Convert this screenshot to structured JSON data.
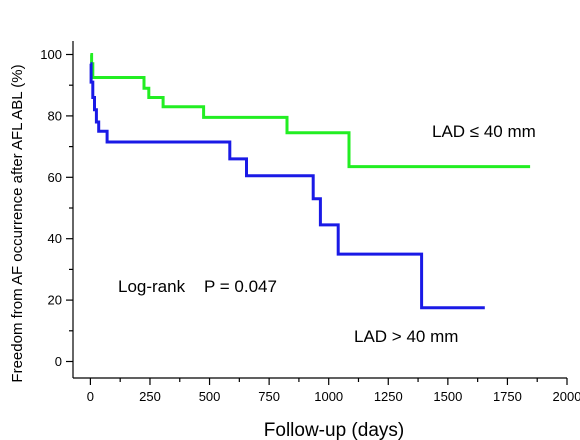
{
  "chart_data": {
    "type": "line",
    "subtype": "kaplan-meier-step",
    "xlabel": "Follow-up (days)",
    "ylabel": "Freedom from AF occurrence after AFL ABL (%)",
    "xlim": [
      -50,
      2000
    ],
    "ylim": [
      -5,
      105
    ],
    "xticks": [
      0,
      250,
      500,
      750,
      1000,
      1250,
      1500,
      1750,
      2000
    ],
    "yticks": [
      0,
      20,
      40,
      60,
      80,
      100
    ],
    "grid": false,
    "legend": "none",
    "series": [
      {
        "label": "LAD ≤ 40 mm",
        "color": "#22ee22",
        "points": [
          [
            0,
            100
          ],
          [
            5,
            100
          ],
          [
            5,
            97
          ],
          [
            10,
            97
          ],
          [
            10,
            92.5
          ],
          [
            225,
            92.5
          ],
          [
            225,
            89
          ],
          [
            245,
            89
          ],
          [
            245,
            86
          ],
          [
            305,
            86
          ],
          [
            305,
            83
          ],
          [
            475,
            83
          ],
          [
            475,
            79.5
          ],
          [
            825,
            79.5
          ],
          [
            825,
            74.5
          ],
          [
            1085,
            74.5
          ],
          [
            1085,
            63.5
          ],
          [
            1845,
            63.5
          ]
        ]
      },
      {
        "label": "LAD > 40 mm",
        "color": "#1a1ae6",
        "points": [
          [
            0,
            97
          ],
          [
            3,
            97
          ],
          [
            3,
            91
          ],
          [
            10,
            91
          ],
          [
            10,
            86
          ],
          [
            17,
            86
          ],
          [
            17,
            82
          ],
          [
            25,
            82
          ],
          [
            25,
            78
          ],
          [
            35,
            78
          ],
          [
            35,
            75
          ],
          [
            70,
            75
          ],
          [
            70,
            71.5
          ],
          [
            585,
            71.5
          ],
          [
            585,
            66
          ],
          [
            655,
            66
          ],
          [
            655,
            60.5
          ],
          [
            935,
            60.5
          ],
          [
            935,
            53
          ],
          [
            965,
            53
          ],
          [
            965,
            44.5
          ],
          [
            1040,
            44.5
          ],
          [
            1040,
            35
          ],
          [
            1390,
            35
          ],
          [
            1390,
            17.5
          ],
          [
            1655,
            17.5
          ]
        ]
      }
    ],
    "annotations": {
      "logrank": "Log-rank    P = 0.047"
    }
  }
}
